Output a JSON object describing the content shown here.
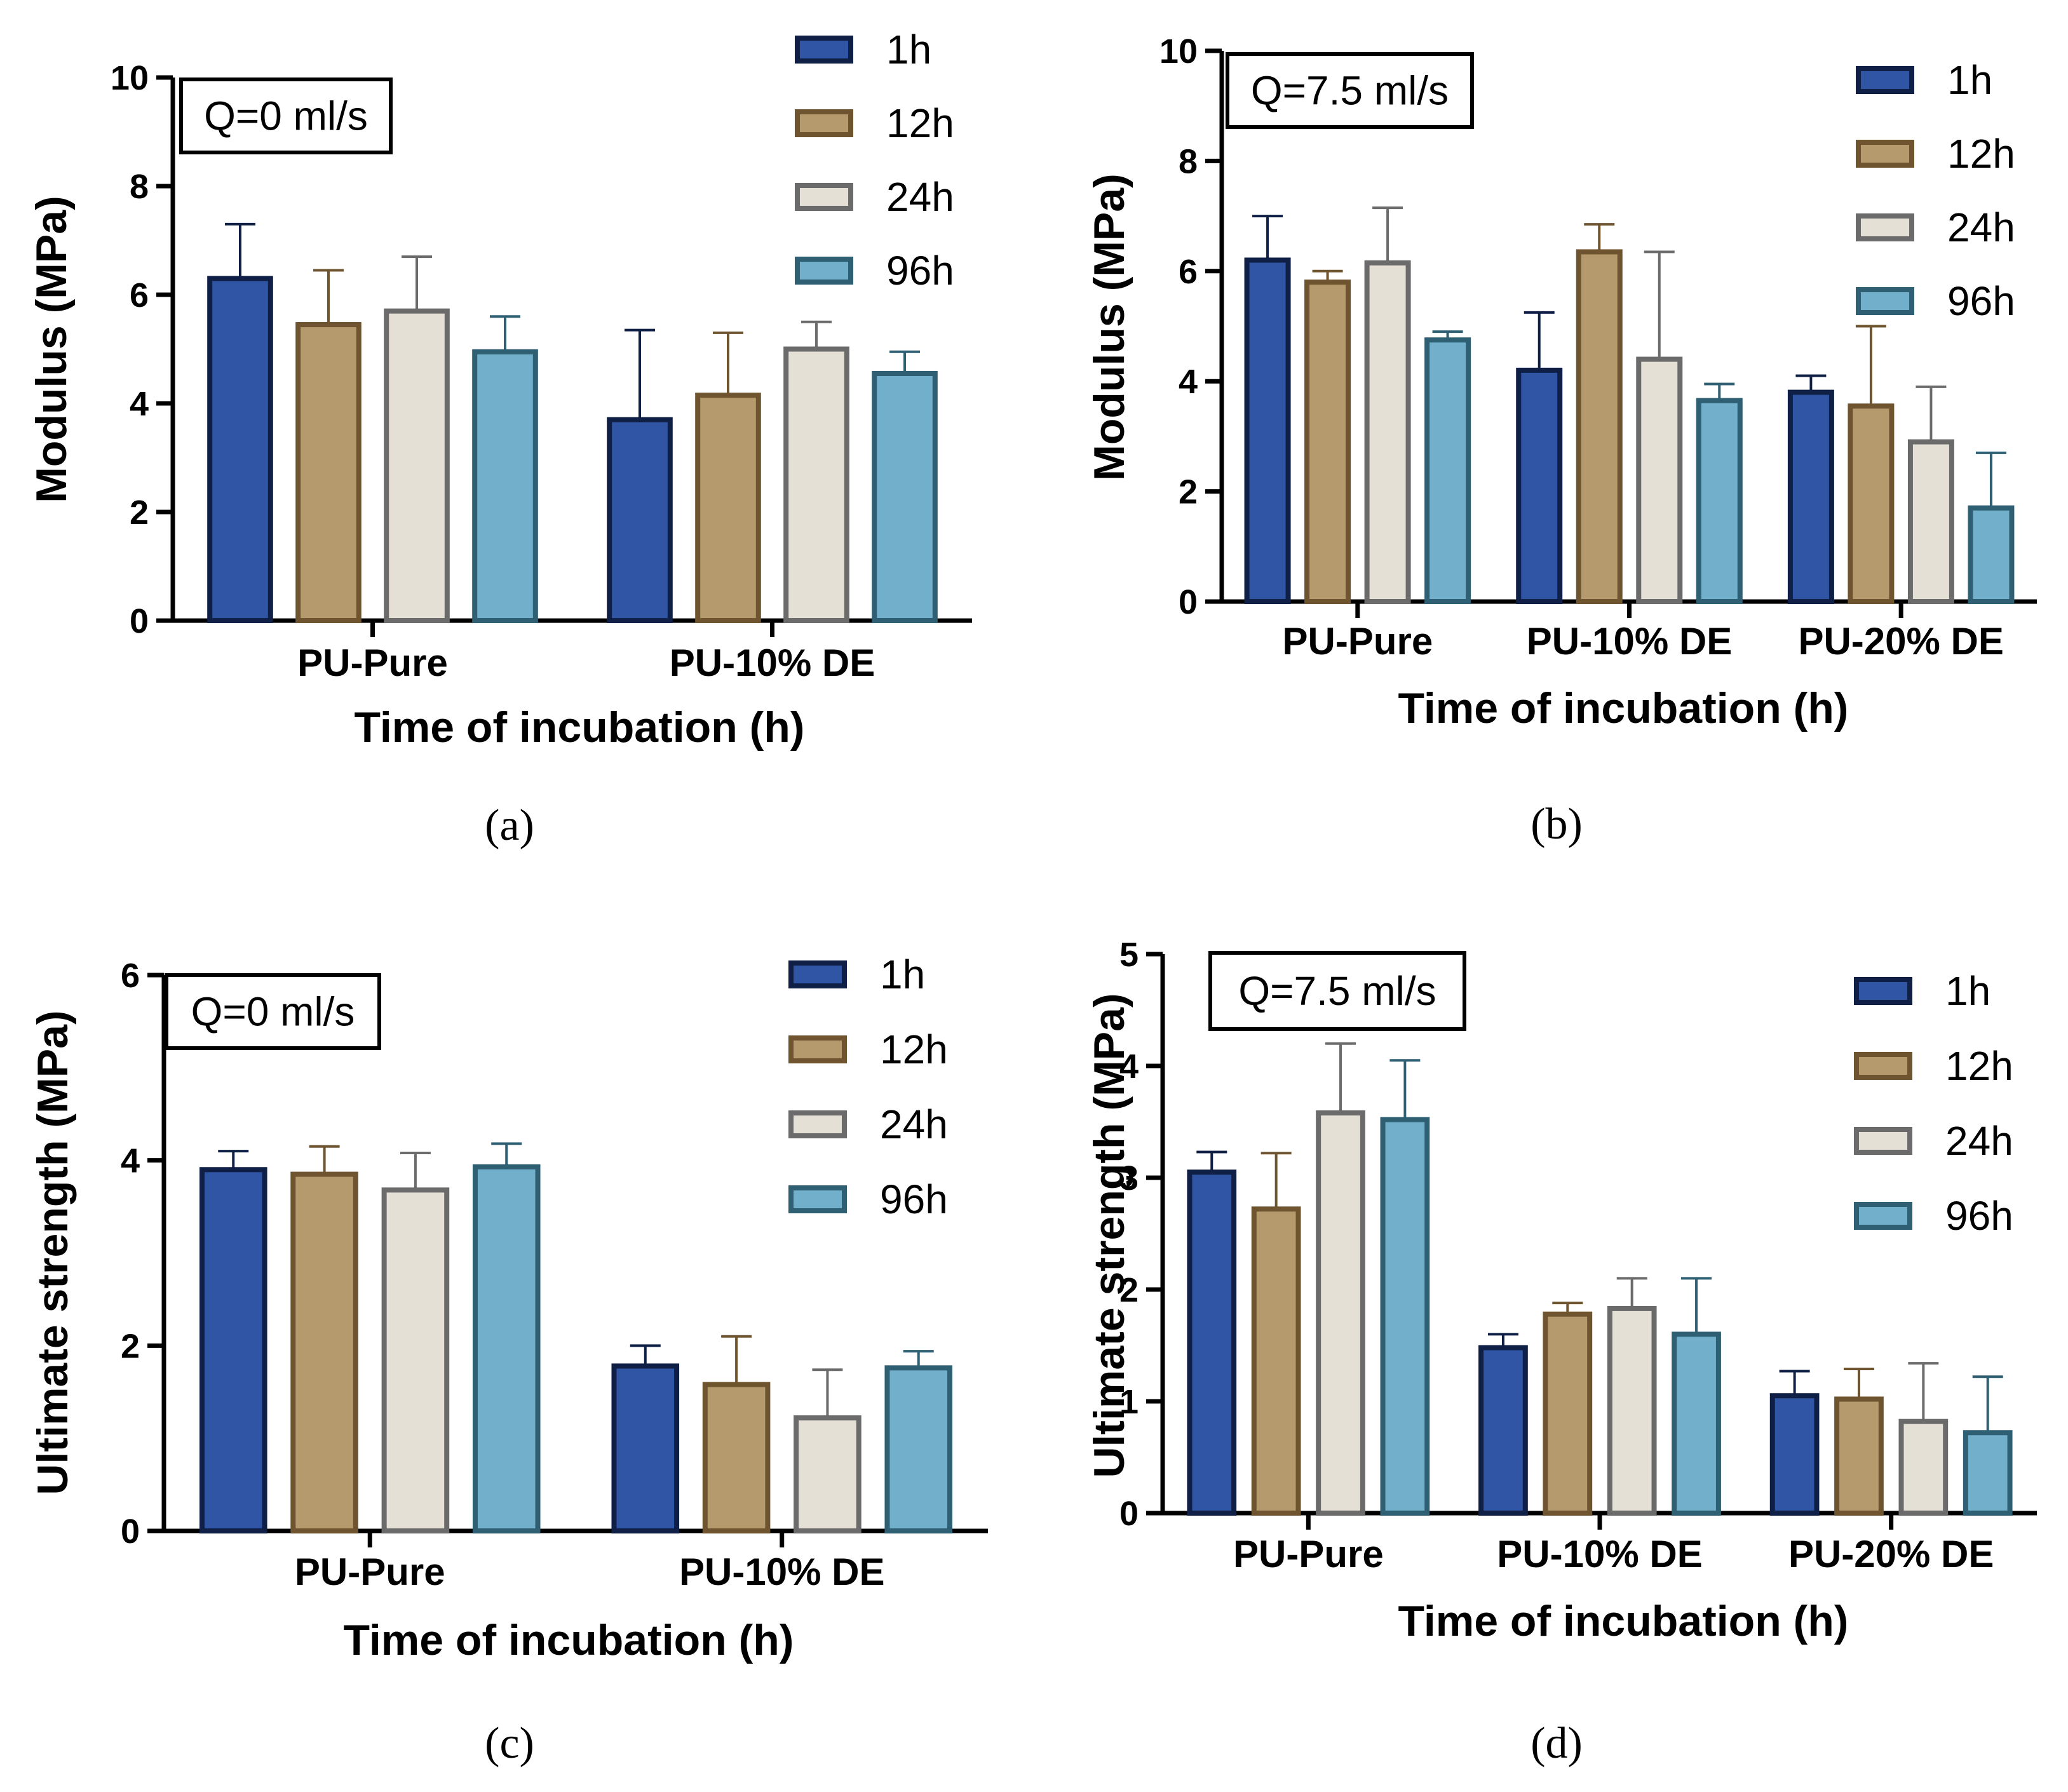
{
  "series_style": [
    {
      "name": "1h",
      "fill": "#2F55A4",
      "stroke": "#0F1F45"
    },
    {
      "name": "12h",
      "fill": "#B49A6C",
      "stroke": "#6E5530"
    },
    {
      "name": "24h",
      "fill": "#E5E0D6",
      "stroke": "#6B6B6B"
    },
    {
      "name": "96h",
      "fill": "#71AFCB",
      "stroke": "#2F5F73"
    }
  ],
  "chart_data": [
    {
      "type": "bar",
      "panel": "(a)",
      "annotation": "Q=0 ml/s",
      "ylabel": "Modulus (MPa)",
      "xlabel": "Time of incubation (h)",
      "ylim": [
        0,
        10
      ],
      "yticks": [
        0,
        2,
        4,
        6,
        8,
        10
      ],
      "categories": [
        "PU-Pure",
        "PU-10% DE"
      ],
      "series": [
        {
          "name": "1h",
          "values": [
            6.3,
            3.7
          ],
          "errors": [
            1.0,
            1.65
          ]
        },
        {
          "name": "12h",
          "values": [
            5.45,
            4.15
          ],
          "errors": [
            1.0,
            1.15
          ]
        },
        {
          "name": "24h",
          "values": [
            5.7,
            5.0
          ],
          "errors": [
            1.0,
            0.5
          ]
        },
        {
          "name": "96h",
          "values": [
            4.95,
            4.55
          ],
          "errors": [
            0.65,
            0.4
          ]
        }
      ]
    },
    {
      "type": "bar",
      "panel": "(b)",
      "annotation": "Q=7.5 ml/s",
      "ylabel": "Modulus (MPa)",
      "xlabel": "Time of incubation (h)",
      "ylim": [
        0,
        10
      ],
      "yticks": [
        0,
        2,
        4,
        6,
        8,
        10
      ],
      "categories": [
        "PU-Pure",
        "PU-10% DE",
        "PU-20% DE"
      ],
      "series": [
        {
          "name": "1h",
          "values": [
            6.2,
            4.2,
            3.8
          ],
          "errors": [
            0.8,
            1.05,
            0.3
          ]
        },
        {
          "name": "12h",
          "values": [
            5.8,
            6.35,
            3.55
          ],
          "errors": [
            0.2,
            0.5,
            1.45
          ]
        },
        {
          "name": "24h",
          "values": [
            6.15,
            4.4,
            2.9
          ],
          "errors": [
            1.0,
            1.95,
            1.0
          ]
        },
        {
          "name": "96h",
          "values": [
            4.75,
            3.65,
            1.7
          ],
          "errors": [
            0.15,
            0.3,
            1.0
          ]
        }
      ]
    },
    {
      "type": "bar",
      "panel": "(c)",
      "annotation": "Q=0 ml/s",
      "ylabel": "Ultimate strength (MPa)",
      "xlabel": "Time of incubation (h)",
      "ylim": [
        0,
        6
      ],
      "yticks": [
        0,
        2,
        4,
        6
      ],
      "categories": [
        "PU-Pure",
        "PU-10% DE"
      ],
      "series": [
        {
          "name": "1h",
          "values": [
            3.9,
            1.78
          ],
          "errors": [
            0.2,
            0.22
          ]
        },
        {
          "name": "12h",
          "values": [
            3.85,
            1.58
          ],
          "errors": [
            0.3,
            0.52
          ]
        },
        {
          "name": "24h",
          "values": [
            3.68,
            1.22
          ],
          "errors": [
            0.4,
            0.52
          ]
        },
        {
          "name": "96h",
          "values": [
            3.93,
            1.76
          ],
          "errors": [
            0.25,
            0.18
          ]
        }
      ]
    },
    {
      "type": "bar",
      "panel": "(d)",
      "annotation": "Q=7.5 ml/s",
      "ylabel": "Ultimate strength (MPa)",
      "xlabel": "Time of incubation (h)",
      "ylim": [
        0,
        5
      ],
      "yticks": [
        0,
        1,
        2,
        3,
        4,
        5
      ],
      "categories": [
        "PU-Pure",
        "PU-10% DE",
        "PU-20% DE"
      ],
      "series": [
        {
          "name": "1h",
          "values": [
            3.05,
            1.48,
            1.05
          ],
          "errors": [
            0.18,
            0.12,
            0.22
          ]
        },
        {
          "name": "12h",
          "values": [
            2.72,
            1.78,
            1.02
          ],
          "errors": [
            0.5,
            0.1,
            0.27
          ]
        },
        {
          "name": "24h",
          "values": [
            3.58,
            1.83,
            0.82
          ],
          "errors": [
            0.62,
            0.27,
            0.52
          ]
        },
        {
          "name": "96h",
          "values": [
            3.52,
            1.6,
            0.72
          ],
          "errors": [
            0.53,
            0.5,
            0.5
          ]
        }
      ]
    }
  ]
}
